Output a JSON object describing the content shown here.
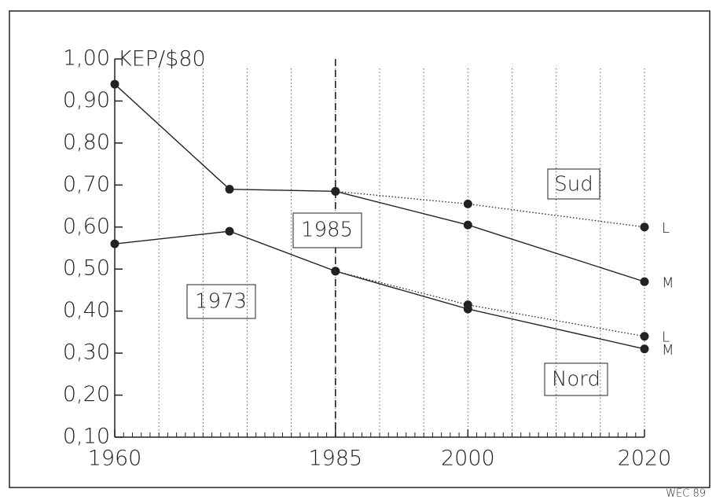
{
  "chart_data": {
    "type": "line",
    "y_unit": "KEP/$80",
    "credit": "WEC 89",
    "xlim": [
      1960,
      2020
    ],
    "ylim": [
      0.1,
      1.0
    ],
    "xticks": [
      1960,
      1985,
      2000,
      2020
    ],
    "xgrid": [
      1965,
      1970,
      1975,
      1980,
      1985,
      1990,
      1995,
      2000,
      2005,
      2010,
      2015,
      2020
    ],
    "minor_tick_interval": 1,
    "reference_line_x": 1985,
    "yticks": [
      {
        "value": 0.1,
        "label": "0,10"
      },
      {
        "value": 0.2,
        "label": "0,20"
      },
      {
        "value": 0.3,
        "label": "0,30"
      },
      {
        "value": 0.4,
        "label": "0,40"
      },
      {
        "value": 0.5,
        "label": "0,50"
      },
      {
        "value": 0.6,
        "label": "0,60"
      },
      {
        "value": 0.7,
        "label": "0,70"
      },
      {
        "value": 0.8,
        "label": "0,80"
      },
      {
        "value": 0.9,
        "label": "0,90"
      },
      {
        "value": 1.0,
        "label": "1,00"
      }
    ],
    "annotations": [
      "Sud",
      "Nord",
      "1973",
      "1985"
    ],
    "series": [
      {
        "name": "M",
        "color": "#222",
        "style": "solid",
        "x": [
          1960,
          1973,
          1985,
          2000,
          2020
        ],
        "values": [
          0.94,
          0.69,
          0.685,
          0.605,
          0.47
        ]
      },
      {
        "name": "L",
        "color": "#222",
        "style": "dotted",
        "x": [
          1985,
          2000,
          2020
        ],
        "values": [
          0.685,
          0.655,
          0.6
        ]
      },
      {
        "name": "M",
        "color": "#222",
        "style": "solid",
        "x": [
          1960,
          1973,
          1985,
          2000,
          2020
        ],
        "values": [
          0.56,
          0.59,
          0.495,
          0.405,
          0.31
        ]
      },
      {
        "name": "L",
        "color": "#222",
        "style": "dotted",
        "x": [
          1985,
          2000,
          2020
        ],
        "values": [
          0.495,
          0.415,
          0.34
        ]
      }
    ]
  }
}
